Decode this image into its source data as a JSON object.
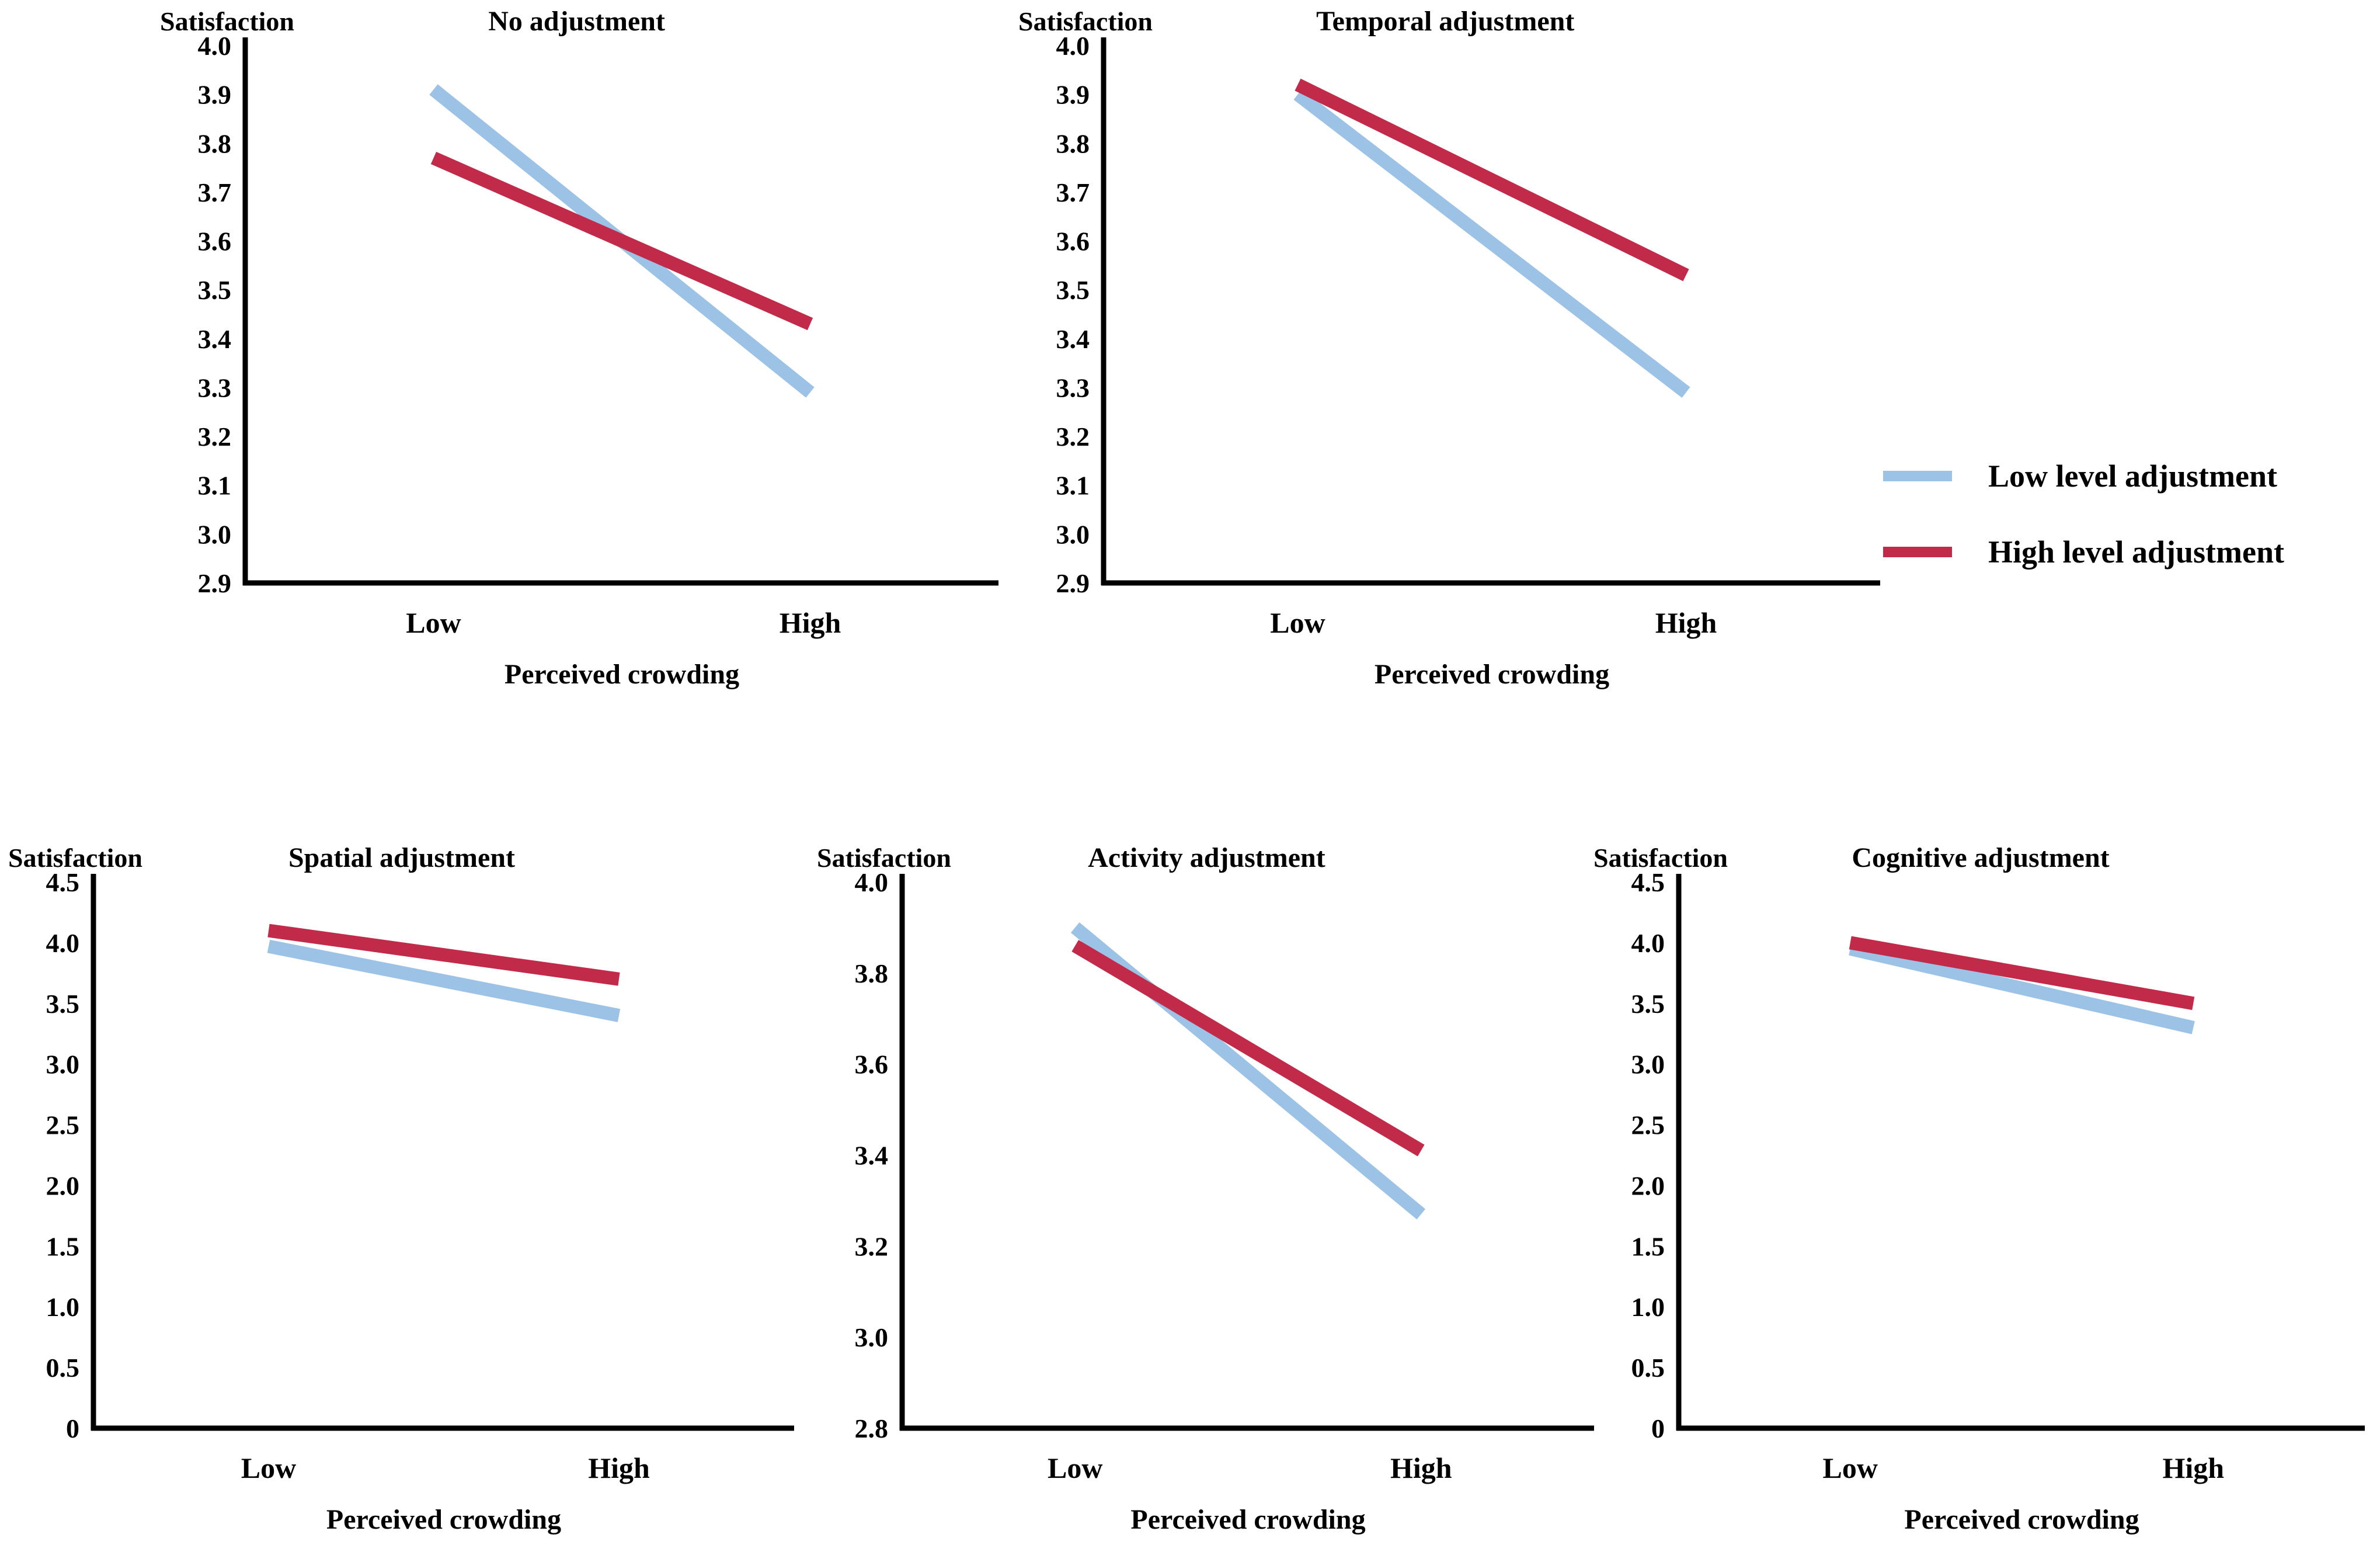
{
  "page": {
    "background": "#ffffff"
  },
  "colors": {
    "low_series": "#9CC2E5",
    "high_series": "#C22A4A",
    "axis": "#000000",
    "text": "#000000"
  },
  "legend": {
    "items": [
      {
        "label": "Low level adjustment",
        "color_key": "low_series"
      },
      {
        "label": "High level adjustment",
        "color_key": "high_series"
      }
    ]
  },
  "chart_data": [
    {
      "type": "line",
      "title": "No adjustment",
      "y_header": "Satisfaction",
      "xlabel": "Perceived crowding",
      "categories": [
        "Low",
        "High"
      ],
      "ylim": [
        2.9,
        4.0
      ],
      "ystep": 0.1,
      "tick_labels": [
        "4.0",
        "3.9",
        "3.8",
        "3.7",
        "3.6",
        "3.5",
        "3.4",
        "3.3",
        "3.2",
        "3.1",
        "3.0",
        "2.9"
      ],
      "grid": false,
      "series": [
        {
          "name": "Low level adjustment",
          "color_key": "low_series",
          "values": [
            3.91,
            3.29
          ]
        },
        {
          "name": "High level adjustment",
          "color_key": "high_series",
          "values": [
            3.77,
            3.43
          ]
        }
      ]
    },
    {
      "type": "line",
      "title": "Temporal adjustment",
      "y_header": "Satisfaction",
      "xlabel": "Perceived crowding",
      "categories": [
        "Low",
        "High"
      ],
      "ylim": [
        2.9,
        4.0
      ],
      "ystep": 0.1,
      "tick_labels": [
        "4.0",
        "3.9",
        "3.8",
        "3.7",
        "3.6",
        "3.5",
        "3.4",
        "3.3",
        "3.2",
        "3.1",
        "3.0",
        "2.9"
      ],
      "grid": false,
      "series": [
        {
          "name": "Low level adjustment",
          "color_key": "low_series",
          "values": [
            3.9,
            3.29
          ]
        },
        {
          "name": "High level adjustment",
          "color_key": "high_series",
          "values": [
            3.92,
            3.53
          ]
        }
      ]
    },
    {
      "type": "line",
      "title": "Spatial adjustment",
      "y_header": "Satisfaction",
      "xlabel": "Perceived crowding",
      "categories": [
        "Low",
        "High"
      ],
      "ylim": [
        0,
        4.5
      ],
      "ystep": 0.5,
      "tick_labels": [
        "4.5",
        "4.0",
        "3.5",
        "3.0",
        "2.5",
        "2.0",
        "1.5",
        "1.0",
        "0.5",
        "0"
      ],
      "grid": false,
      "series": [
        {
          "name": "Low level adjustment",
          "color_key": "low_series",
          "values": [
            3.97,
            3.4
          ]
        },
        {
          "name": "High level adjustment",
          "color_key": "high_series",
          "values": [
            4.1,
            3.7
          ]
        }
      ]
    },
    {
      "type": "line",
      "title": "Activity adjustment",
      "y_header": "Satisfaction",
      "xlabel": "Perceived crowding",
      "categories": [
        "Low",
        "High"
      ],
      "ylim": [
        2.8,
        4.0
      ],
      "ystep": 0.2,
      "tick_labels": [
        "4.0",
        "3.8",
        "3.6",
        "3.4",
        "3.2",
        "3.0",
        "2.8"
      ],
      "grid": false,
      "series": [
        {
          "name": "Low level adjustment",
          "color_key": "low_series",
          "values": [
            3.9,
            3.27
          ]
        },
        {
          "name": "High level adjustment",
          "color_key": "high_series",
          "values": [
            3.86,
            3.41
          ]
        }
      ]
    },
    {
      "type": "line",
      "title": "Cognitive adjustment",
      "y_header": "Satisfaction",
      "xlabel": "Perceived crowding",
      "categories": [
        "Low",
        "High"
      ],
      "ylim": [
        0,
        4.5
      ],
      "ystep": 0.5,
      "tick_labels": [
        "4.5",
        "4.0",
        "3.5",
        "3.0",
        "2.5",
        "2.0",
        "1.5",
        "1.0",
        "0.5",
        "0"
      ],
      "grid": false,
      "series": [
        {
          "name": "Low level adjustment",
          "color_key": "low_series",
          "values": [
            3.95,
            3.3
          ]
        },
        {
          "name": "High level adjustment",
          "color_key": "high_series",
          "values": [
            4.0,
            3.5
          ]
        }
      ]
    }
  ]
}
